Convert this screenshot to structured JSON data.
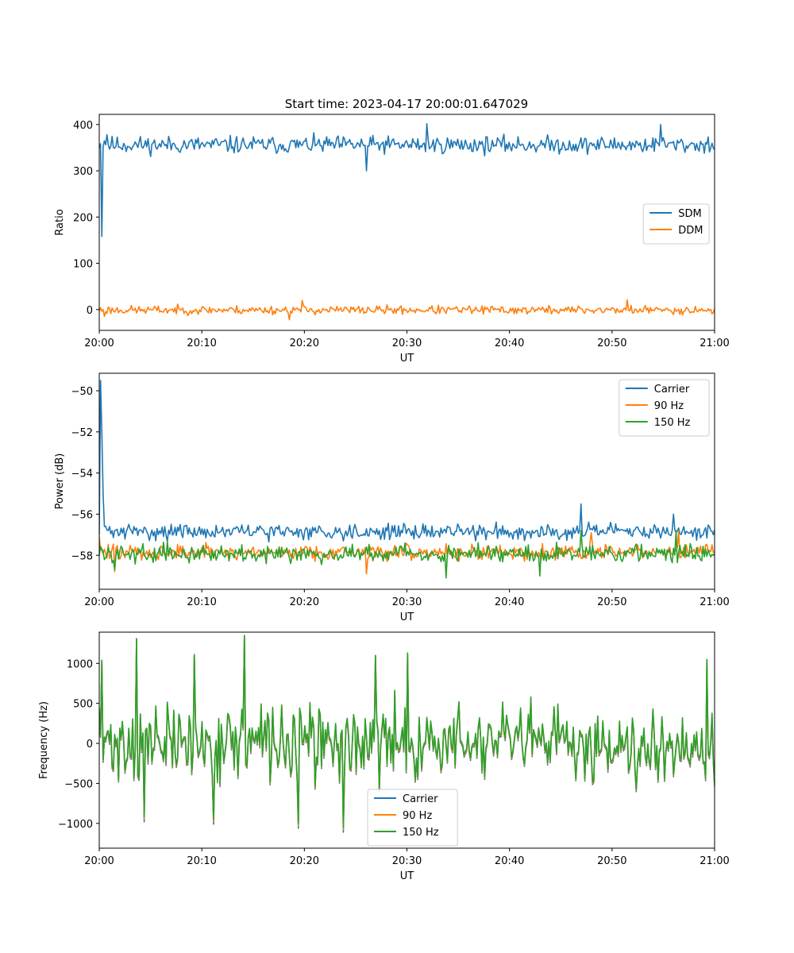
{
  "figure": {
    "title": "Start time: 2023-04-17 20:00:01.647029"
  },
  "chart_data": [
    {
      "type": "line",
      "xlabel": "UT",
      "ylabel": "Ratio",
      "xlim": [
        "20:00",
        "21:00"
      ],
      "xticks": [
        "20:00",
        "20:10",
        "20:20",
        "20:30",
        "20:40",
        "20:50",
        "21:00"
      ],
      "ylim": [
        -45,
        422
      ],
      "yticks": [
        0,
        100,
        200,
        300,
        400
      ],
      "grid": false,
      "legend": "center-right",
      "series": [
        {
          "name": "SDM",
          "color": "#1f77b4",
          "baseline": 356,
          "noise": 16,
          "seed": 11,
          "points": [
            [
              0,
              350
            ],
            [
              0.25,
              158
            ],
            [
              0.5,
              365
            ],
            [
              0.75,
              378
            ],
            [
              26,
              300
            ],
            [
              32,
              402
            ],
            [
              54.7,
              400
            ]
          ]
        },
        {
          "name": "DDM",
          "color": "#ff7f0e",
          "baseline": -1,
          "noise": 8,
          "seed": 23,
          "points": [
            [
              0,
              -3
            ],
            [
              0.5,
              -15
            ],
            [
              18.5,
              -22
            ],
            [
              19.8,
              20
            ],
            [
              51.5,
              21
            ]
          ]
        }
      ]
    },
    {
      "type": "line",
      "xlabel": "UT",
      "ylabel": "Power (dB)",
      "xlim": [
        "20:00",
        "21:00"
      ],
      "xticks": [
        "20:00",
        "20:10",
        "20:20",
        "20:30",
        "20:40",
        "20:50",
        "21:00"
      ],
      "ylim": [
        -59.65,
        -49.15
      ],
      "yticks": [
        -58,
        -56,
        -54,
        -52,
        -50
      ],
      "grid": false,
      "legend": "top-right",
      "series": [
        {
          "name": "Carrier",
          "color": "#1f77b4",
          "baseline": -56.85,
          "noise": 0.32,
          "seed": 31,
          "points": [
            [
              0,
              -57.0
            ],
            [
              0.1,
              -56.4
            ],
            [
              0.18,
              -49.5
            ],
            [
              0.26,
              -52.0
            ],
            [
              0.34,
              -55.0
            ],
            [
              0.45,
              -56.6
            ],
            [
              47.0,
              -55.5
            ],
            [
              56.0,
              -56.0
            ]
          ]
        },
        {
          "name": "90 Hz",
          "color": "#ff7f0e",
          "baseline": -57.85,
          "noise": 0.33,
          "seed": 47,
          "points": [
            [
              0,
              -57.1
            ],
            [
              1.5,
              -58.8
            ],
            [
              26,
              -58.9
            ],
            [
              48,
              -56.9
            ],
            [
              56.5,
              -56.8
            ]
          ]
        },
        {
          "name": "150 Hz",
          "color": "#2ca02c",
          "baseline": -57.9,
          "noise": 0.36,
          "seed": 59,
          "points": [
            [
              0,
              -58.0
            ],
            [
              1.5,
              -58.7
            ],
            [
              33.8,
              -59.1
            ],
            [
              43,
              -59.0
            ],
            [
              47.0,
              -56.8
            ],
            [
              56.3,
              -56.8
            ]
          ]
        }
      ]
    },
    {
      "type": "line",
      "xlabel": "UT",
      "ylabel": "Frequency (Hz)",
      "xlim": [
        "20:00",
        "21:00"
      ],
      "xticks": [
        "20:00",
        "20:10",
        "20:20",
        "20:30",
        "20:40",
        "20:50",
        "21:00"
      ],
      "ylim": [
        -1310,
        1390
      ],
      "yticks": [
        -1000,
        -500,
        0,
        500,
        1000
      ],
      "grid": false,
      "legend": "bottom-center",
      "series": [
        {
          "name": "Carrier",
          "color": "#1f77b4",
          "baseline": -20,
          "noise": 400,
          "seed": 71,
          "points": [
            [
              0,
              420
            ],
            [
              0.2,
              1030
            ],
            [
              3.6,
              1300
            ],
            [
              4.4,
              -980
            ],
            [
              9.3,
              1100
            ],
            [
              11.2,
              -1010
            ],
            [
              14.1,
              1340
            ],
            [
              19.4,
              -1060
            ],
            [
              23.8,
              -1110
            ],
            [
              26.9,
              1090
            ],
            [
              30.0,
              1120
            ],
            [
              59.3,
              1040
            ]
          ]
        },
        {
          "name": "90 Hz",
          "color": "#ff7f0e",
          "baseline": -5,
          "noise": 400,
          "seed": 71,
          "points": [
            [
              0,
              430
            ],
            [
              0.2,
              1035
            ],
            [
              3.6,
              1305
            ],
            [
              4.4,
              -950
            ],
            [
              9.3,
              1105
            ],
            [
              11.2,
              -980
            ],
            [
              14.1,
              1345
            ],
            [
              19.4,
              -1030
            ],
            [
              23.8,
              -1080
            ],
            [
              26.9,
              1095
            ],
            [
              30.0,
              1125
            ],
            [
              59.3,
              1045
            ]
          ]
        },
        {
          "name": "150 Hz",
          "color": "#2ca02c",
          "baseline": 10,
          "noise": 400,
          "seed": 71,
          "points": [
            [
              0,
              440
            ],
            [
              0.2,
              1040
            ],
            [
              3.6,
              1310
            ],
            [
              4.4,
              -920
            ],
            [
              9.3,
              1110
            ],
            [
              11.2,
              -950
            ],
            [
              14.1,
              1350
            ],
            [
              19.4,
              -1000
            ],
            [
              23.8,
              -1050
            ],
            [
              26.9,
              1100
            ],
            [
              30.0,
              1130
            ],
            [
              59.3,
              1050
            ]
          ]
        }
      ]
    }
  ]
}
